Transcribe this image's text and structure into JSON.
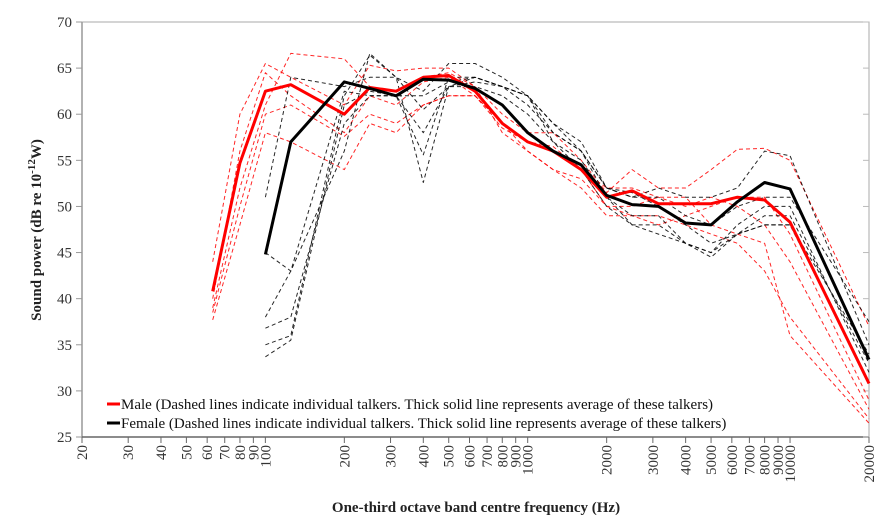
{
  "chart_data": {
    "type": "line",
    "title": "",
    "xlabel": "One-third octave band centre frequency (Hz)",
    "ylabel": {
      "prefix": "Sound power (dB re 10",
      "exponent": "-12",
      "suffix": "W)"
    },
    "xscale": "log",
    "xlim": [
      20,
      20000
    ],
    "ylim": [
      25,
      70
    ],
    "yticks": [
      25,
      30,
      35,
      40,
      45,
      50,
      55,
      60,
      65,
      70
    ],
    "xticks": [
      20,
      30,
      40,
      50,
      60,
      70,
      80,
      90,
      100,
      200,
      300,
      400,
      500,
      600,
      700,
      800,
      900,
      1000,
      2000,
      3000,
      4000,
      5000,
      6000,
      7000,
      8000,
      9000,
      10000,
      20000
    ],
    "grid": false,
    "legend": {
      "placement": "bottom-left",
      "entries": [
        {
          "label": "Male (Dashed lines indicate individual talkers. Thick solid line represents average of these talkers)",
          "color": "#ff0000"
        },
        {
          "label": "Female (Dashed lines indicate individual talkers. Thick solid line represents average of these talkers)",
          "color": "#000000"
        }
      ]
    },
    "male_x": [
      63,
      80,
      100,
      125,
      200,
      250,
      315,
      400,
      500,
      630,
      800,
      1000,
      1250,
      1600,
      2000,
      2500,
      3150,
      4000,
      5000,
      6300,
      8000,
      10000,
      20000
    ],
    "female_x": [
      100,
      125,
      200,
      250,
      315,
      400,
      500,
      630,
      800,
      1000,
      1250,
      1600,
      2000,
      2500,
      3150,
      4000,
      5000,
      6300,
      8000,
      10000,
      20000
    ],
    "series": [
      {
        "name": "Male average",
        "group": "male",
        "color": "#ff0000",
        "style": "solid",
        "values": [
          40.8,
          54.7,
          62.5,
          63.2,
          60.0,
          62.9,
          62.5,
          64.0,
          64.2,
          62.5,
          59.0,
          57.0,
          56.0,
          54.0,
          51.0,
          51.7,
          50.3,
          50.3,
          50.3,
          51.0,
          50.7,
          48.3,
          30.8
        ]
      },
      {
        "name": "Female average",
        "group": "female",
        "color": "#000000",
        "style": "solid",
        "values": [
          44.8,
          57.0,
          63.5,
          62.8,
          62.0,
          63.8,
          63.7,
          62.8,
          61.0,
          58.0,
          56.0,
          54.5,
          51.2,
          50.2,
          50.0,
          48.2,
          48.0,
          50.5,
          52.6,
          51.9,
          33.4
        ]
      },
      {
        "name": "Male talker 1",
        "group": "male",
        "color": "#ff0000",
        "style": "dashed",
        "values": [
          37.7,
          48,
          58,
          57,
          54,
          59,
          58,
          61,
          62,
          62,
          59,
          57,
          56,
          54,
          50,
          49,
          49,
          48,
          47,
          46,
          43,
          38,
          27
        ]
      },
      {
        "name": "Male talker 2",
        "group": "male",
        "color": "#ff0000",
        "style": "dashed",
        "values": [
          44,
          60,
          65.5,
          64,
          61,
          65.3,
          64.7,
          65,
          65,
          63,
          60,
          58,
          58,
          55,
          51.5,
          54,
          52,
          52,
          54,
          56.2,
          56.3,
          55,
          37
        ]
      },
      {
        "name": "Male talker 3",
        "group": "male",
        "color": "#ff0000",
        "style": "dashed",
        "values": [
          39,
          52,
          61,
          66.6,
          66,
          63,
          62,
          64,
          64.5,
          63,
          58,
          56,
          54,
          52,
          49,
          49,
          48,
          49,
          50,
          51,
          51,
          47,
          29
        ]
      },
      {
        "name": "Male talker 4",
        "group": "male",
        "color": "#ff0000",
        "style": "dashed",
        "values": [
          40,
          56,
          64.5,
          62,
          58,
          62,
          61,
          63.5,
          64,
          62,
          58.5,
          57,
          56.5,
          54,
          52,
          52,
          51,
          50,
          51,
          50,
          48,
          44,
          28
        ]
      },
      {
        "name": "Male talker 5",
        "group": "male",
        "color": "#ff0000",
        "style": "dashed",
        "values": [
          38.5,
          50,
          60,
          61,
          57.6,
          60,
          59,
          61,
          62,
          62,
          59,
          56,
          54,
          53,
          50,
          50,
          51,
          51,
          48,
          47,
          46,
          36,
          26.5
        ]
      },
      {
        "name": "Female talker 1",
        "group": "female",
        "color": "#000000",
        "style": "dashed",
        "values": [
          38,
          43,
          56,
          66.6,
          64,
          62.5,
          65.5,
          65.5,
          64,
          62,
          58,
          56,
          52,
          51.5,
          50,
          48,
          46,
          47,
          48,
          48,
          34
        ]
      },
      {
        "name": "Female talker 2",
        "group": "female",
        "color": "#000000",
        "style": "dashed",
        "values": [
          35,
          36,
          62,
          66.4,
          64,
          52.6,
          63,
          64,
          63,
          62,
          57,
          55,
          51,
          48,
          47,
          46,
          45,
          48,
          50,
          50,
          32
        ]
      },
      {
        "name": "Female talker 3",
        "group": "female",
        "color": "#000000",
        "style": "dashed",
        "values": [
          36.8,
          38,
          59,
          62,
          62,
          55.6,
          64,
          64,
          63,
          61,
          58,
          56,
          51,
          49,
          49,
          46,
          44.5,
          47,
          49,
          49,
          33
        ]
      },
      {
        "name": "Female talker 4",
        "group": "female",
        "color": "#000000",
        "style": "dashed",
        "values": [
          33.7,
          35.5,
          61,
          62.5,
          62,
          58,
          63,
          63,
          62,
          60,
          57,
          54,
          50,
          48,
          48,
          46,
          45,
          47,
          48,
          48,
          31
        ]
      },
      {
        "name": "Female talker 5",
        "group": "female",
        "color": "#000000",
        "style": "dashed",
        "values": [
          51,
          64,
          63,
          64,
          64,
          60.5,
          63,
          63.5,
          63,
          62,
          59,
          57,
          52,
          51,
          52,
          51,
          51,
          52,
          56,
          55.5,
          35
        ]
      },
      {
        "name": "Female talker 6",
        "group": "female",
        "color": "#000000",
        "style": "dashed",
        "values": [
          45,
          43,
          62.5,
          62,
          62,
          62,
          63.5,
          64,
          63,
          62,
          59,
          56,
          52,
          51,
          51,
          49,
          48,
          50,
          51,
          51,
          37.5
        ]
      }
    ]
  }
}
